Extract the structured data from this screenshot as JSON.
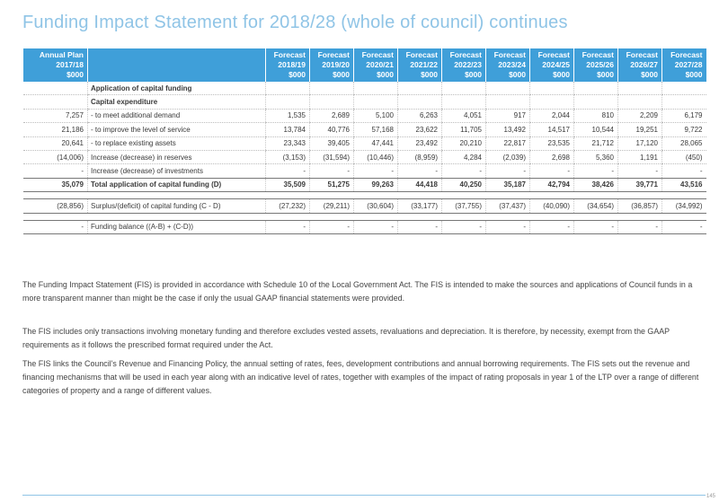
{
  "title": "Funding Impact Statement for 2018/28 (whole of council) continues",
  "table": {
    "headers": [
      [
        "Annual Plan",
        "2017/18",
        "$000"
      ],
      [
        "",
        "",
        ""
      ],
      [
        "Forecast",
        "2018/19",
        "$000"
      ],
      [
        "Forecast",
        "2019/20",
        "$000"
      ],
      [
        "Forecast",
        "2020/21",
        "$000"
      ],
      [
        "Forecast",
        "2021/22",
        "$000"
      ],
      [
        "Forecast",
        "2022/23",
        "$000"
      ],
      [
        "Forecast",
        "2023/24",
        "$000"
      ],
      [
        "Forecast",
        "2024/25",
        "$000"
      ],
      [
        "Forecast",
        "2025/26",
        "$000"
      ],
      [
        "Forecast",
        "2026/27",
        "$000"
      ],
      [
        "Forecast",
        "2027/28",
        "$000"
      ]
    ],
    "rows": [
      {
        "kind": "heading",
        "cells": [
          "",
          "Application of capital funding",
          "",
          "",
          "",
          "",
          "",
          "",
          "",
          "",
          "",
          ""
        ]
      },
      {
        "kind": "heading",
        "cells": [
          "",
          "Capital expenditure",
          "",
          "",
          "",
          "",
          "",
          "",
          "",
          "",
          "",
          ""
        ]
      },
      {
        "kind": "row",
        "cells": [
          "7,257",
          "- to meet additional demand",
          "1,535",
          "2,689",
          "5,100",
          "6,263",
          "4,051",
          "917",
          "2,044",
          "810",
          "2,209",
          "6,179"
        ]
      },
      {
        "kind": "row",
        "cells": [
          "21,186",
          "- to improve the level of service",
          "13,784",
          "40,776",
          "57,168",
          "23,622",
          "11,705",
          "13,492",
          "14,517",
          "10,544",
          "19,251",
          "9,722"
        ]
      },
      {
        "kind": "row",
        "cells": [
          "20,641",
          "- to replace existing assets",
          "23,343",
          "39,405",
          "47,441",
          "23,492",
          "20,210",
          "22,817",
          "23,535",
          "21,712",
          "17,120",
          "28,065"
        ]
      },
      {
        "kind": "row",
        "cells": [
          "(14,006)",
          "Increase (decrease) in reserves",
          "(3,153)",
          "(31,594)",
          "(10,446)",
          "(8,959)",
          "4,284",
          "(2,039)",
          "2,698",
          "5,360",
          "1,191",
          "(450)"
        ]
      },
      {
        "kind": "row",
        "cells": [
          "-",
          "Increase (decrease) of investments",
          "-",
          "-",
          "-",
          "-",
          "-",
          "-",
          "-",
          "-",
          "-",
          "-"
        ]
      },
      {
        "kind": "total",
        "cells": [
          "35,079",
          "Total application of capital funding (D)",
          "35,509",
          "51,275",
          "99,263",
          "44,418",
          "40,250",
          "35,187",
          "42,794",
          "38,426",
          "39,771",
          "43,516"
        ]
      },
      {
        "kind": "spacer",
        "cells": [
          "",
          "",
          "",
          "",
          "",
          "",
          "",
          "",
          "",
          "",
          "",
          ""
        ]
      },
      {
        "kind": "sub",
        "cells": [
          "(28,856)",
          "Surplus/(deficit) of capital funding (C - D)",
          "(27,232)",
          "(29,211)",
          "(30,604)",
          "(33,177)",
          "(37,755)",
          "(37,437)",
          "(40,090)",
          "(34,654)",
          "(36,857)",
          "(34,992)"
        ]
      },
      {
        "kind": "spacer",
        "cells": [
          "",
          "",
          "",
          "",
          "",
          "",
          "",
          "",
          "",
          "",
          "",
          ""
        ]
      },
      {
        "kind": "sub",
        "cells": [
          "-",
          "Funding balance ((A-B) + (C-D))",
          "-",
          "-",
          "-",
          "-",
          "-",
          "-",
          "-",
          "-",
          "-",
          "-"
        ]
      }
    ]
  },
  "notes": [
    "The Funding Impact Statement (FIS) is provided in accordance with Schedule 10 of the Local Government Act. The FIS is intended to make the sources and applications of Council funds in a more transparent manner than might be the case if only the usual GAAP financial statements were provided.",
    "The FIS includes only transactions involving monetary funding and therefore excludes vested assets, revaluations and depreciation.  It is therefore, by necessity, exempt from the GAAP requirements as it follows the prescribed format required under the Act.",
    "The FIS links the Council's Revenue and Financing Policy, the annual setting of rates, fees, development contributions and annual borrowing requirements.  The FIS sets out the revenue and financing mechanisms that will be used in each year along with an indicative level of rates, together with examples of the impact of rating proposals in year 1 of the LTP over a range of different categories of property and a range of different values."
  ],
  "page_number": "145"
}
